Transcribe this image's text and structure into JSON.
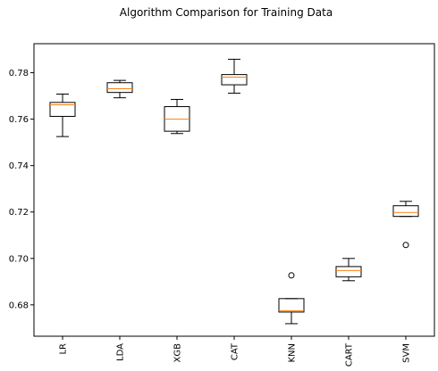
{
  "chart_data": {
    "type": "box",
    "title": "Algorithm Comparison for Training Data",
    "xlabel": "",
    "ylabel": "",
    "categories": [
      "LR",
      "LDA",
      "XGB",
      "CAT",
      "KNN",
      "CART",
      "SVM"
    ],
    "ylim": [
      0.6665,
      0.7925
    ],
    "yticks": [
      0.68,
      0.7,
      0.72,
      0.74,
      0.76,
      0.78
    ],
    "ytick_labels": [
      "0.68",
      "0.70",
      "0.72",
      "0.74",
      "0.76",
      "0.78"
    ],
    "boxes": [
      {
        "label": "LR",
        "whislo": 0.7525,
        "q1": 0.7612,
        "med": 0.7662,
        "q3": 0.7672,
        "whishi": 0.7708,
        "fliers": []
      },
      {
        "label": "LDA",
        "whislo": 0.7692,
        "q1": 0.7715,
        "med": 0.7731,
        "q3": 0.7757,
        "whishi": 0.7767,
        "fliers": []
      },
      {
        "label": "XGB",
        "whislo": 0.7538,
        "q1": 0.7548,
        "med": 0.76,
        "q3": 0.7654,
        "whishi": 0.7685,
        "fliers": []
      },
      {
        "label": "CAT",
        "whislo": 0.7712,
        "q1": 0.7748,
        "med": 0.7781,
        "q3": 0.7792,
        "whishi": 0.7858,
        "fliers": []
      },
      {
        "label": "KNN",
        "whislo": 0.6719,
        "q1": 0.6769,
        "med": 0.6775,
        "q3": 0.6827,
        "whishi": 0.6827,
        "fliers": [
          0.6927
        ]
      },
      {
        "label": "CART",
        "whislo": 0.6904,
        "q1": 0.6921,
        "med": 0.6948,
        "q3": 0.6965,
        "whishi": 0.7,
        "fliers": []
      },
      {
        "label": "SVM",
        "whislo": 0.7181,
        "q1": 0.7181,
        "med": 0.7198,
        "q3": 0.7227,
        "whishi": 0.7246,
        "fliers": [
          0.7058
        ]
      }
    ],
    "grid": false,
    "colors": {
      "box": "#000000",
      "median": "#ff7f0e",
      "axes": "#000000",
      "background": "#ffffff"
    }
  }
}
